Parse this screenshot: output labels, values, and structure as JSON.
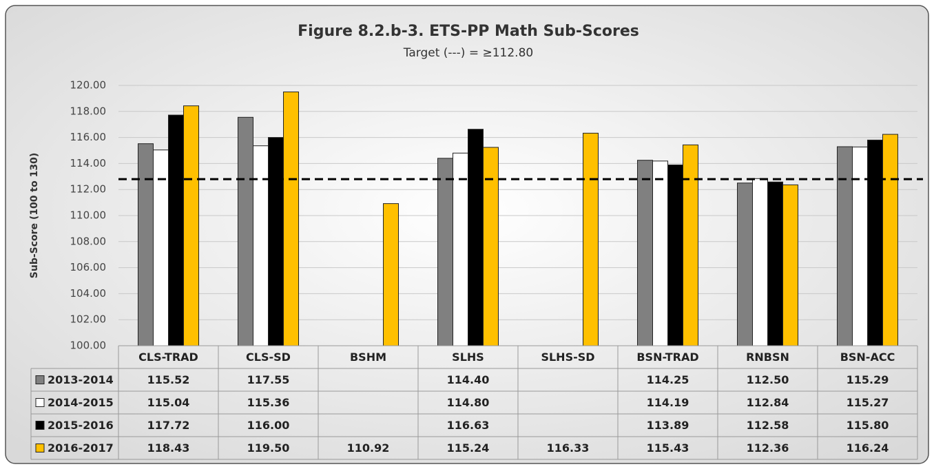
{
  "chart_data": {
    "type": "bar",
    "title": "Figure 8.2.b-3. ETS-PP Math Sub-Scores",
    "subtitle": "Target (---) = ≥112.80",
    "y_label": "Sub-Score (100 to 130)",
    "categories": [
      "CLS-TRAD",
      "CLS-SD",
      "BSHM",
      "SLHS",
      "SLHS-SD",
      "BSN-TRAD",
      "RNBSN",
      "BSN-ACC"
    ],
    "series": [
      {
        "name": "2013-2014",
        "color": "#808080",
        "values": [
          115.52,
          117.55,
          null,
          114.4,
          null,
          114.25,
          112.5,
          115.29
        ],
        "value_labels": [
          "115.52",
          "117.55",
          null,
          "114.40",
          null,
          "114.25",
          "112.50",
          "115.29"
        ]
      },
      {
        "name": "2014-2015",
        "color": "#ffffff",
        "values": [
          115.04,
          115.36,
          null,
          114.8,
          null,
          114.19,
          112.84,
          115.27
        ],
        "value_labels": [
          "115.04",
          "115.36",
          null,
          "114.80",
          null,
          "114.19",
          "112.84",
          "115.27"
        ]
      },
      {
        "name": "2015-2016",
        "color": "#000000",
        "values": [
          117.72,
          116.0,
          null,
          116.63,
          null,
          113.89,
          112.58,
          115.8
        ],
        "value_labels": [
          "117.72",
          "116.00",
          null,
          "116.63",
          null,
          "113.89",
          "112.58",
          "115.80"
        ]
      },
      {
        "name": "2016-2017",
        "color": "#ffc000",
        "values": [
          118.43,
          119.5,
          110.92,
          115.24,
          116.33,
          115.43,
          112.36,
          116.24
        ],
        "value_labels": [
          "118.43",
          "119.50",
          "110.92",
          "115.24",
          "116.33",
          "115.43",
          "112.36",
          "116.24"
        ]
      }
    ],
    "target_line": 112.8,
    "ylim": [
      100,
      120
    ],
    "yticks": [
      {
        "value": 100,
        "label": "100.00"
      },
      {
        "value": 102,
        "label": "102.00"
      },
      {
        "value": 104,
        "label": "104.00"
      },
      {
        "value": 106,
        "label": "106.00"
      },
      {
        "value": 108,
        "label": "108.00"
      },
      {
        "value": 110,
        "label": "110.00"
      },
      {
        "value": 112,
        "label": "112.00"
      },
      {
        "value": 114,
        "label": "114.00"
      },
      {
        "value": 116,
        "label": "116.00"
      },
      {
        "value": 118,
        "label": "118.00"
      },
      {
        "value": 120,
        "label": "120.00"
      }
    ],
    "grid": true
  }
}
